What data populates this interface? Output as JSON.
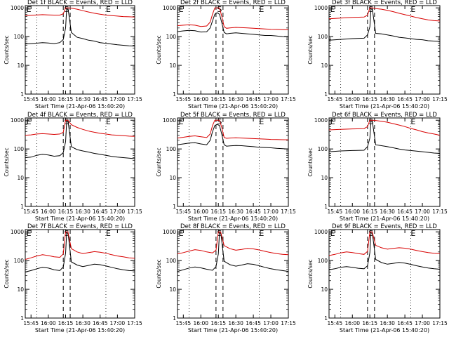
{
  "chart_data": [
    {
      "type": "line",
      "title": "Det 1f BLACK = Events, RED = LLD",
      "series": [
        {
          "name": "Events",
          "color": "#000000",
          "x": [
            0,
            8,
            15,
            20,
            25,
            30,
            33,
            35,
            36,
            37,
            40,
            45,
            50,
            55,
            60,
            65,
            70,
            75,
            80,
            85,
            90,
            95
          ],
          "y": [
            55,
            58,
            62,
            60,
            57,
            62,
            80,
            200,
            1000,
            1000,
            140,
            95,
            85,
            75,
            70,
            62,
            58,
            55,
            52,
            50,
            48,
            47
          ]
        },
        {
          "name": "LLD",
          "color": "#d80000",
          "x": [
            0,
            8,
            15,
            20,
            25,
            30,
            33,
            35,
            36,
            37,
            40,
            45,
            50,
            55,
            60,
            65,
            70,
            75,
            80,
            85,
            90,
            95
          ],
          "y": [
            540,
            560,
            580,
            570,
            560,
            560,
            620,
            1000,
            1000,
            1000,
            980,
            900,
            800,
            720,
            650,
            600,
            560,
            540,
            520,
            500,
            490,
            480
          ]
        }
      ]
    },
    {
      "type": "line",
      "title": "Det 2f BLACK = Events, RED = LLD",
      "series": [
        {
          "name": "Events",
          "color": "#000000",
          "x": [
            0,
            5,
            10,
            15,
            20,
            25,
            28,
            30,
            32,
            34,
            36,
            38,
            40,
            42,
            45,
            50,
            55,
            60,
            65,
            70,
            75,
            80,
            85,
            90,
            95
          ],
          "y": [
            150,
            158,
            165,
            160,
            145,
            148,
            200,
            350,
            600,
            680,
            600,
            300,
            140,
            125,
            130,
            135,
            130,
            125,
            120,
            115,
            110,
            110,
            105,
            100,
            98
          ]
        },
        {
          "name": "LLD",
          "color": "#d80000",
          "x": [
            0,
            5,
            10,
            15,
            20,
            25,
            28,
            30,
            32,
            34,
            36,
            38,
            40,
            42,
            45,
            50,
            55,
            60,
            65,
            70,
            75,
            80,
            85,
            90,
            95
          ],
          "y": [
            240,
            250,
            260,
            250,
            225,
            235,
            320,
            600,
            1000,
            1000,
            1000,
            500,
            220,
            195,
            200,
            210,
            205,
            200,
            195,
            190,
            185,
            180,
            178,
            175,
            172
          ]
        }
      ]
    },
    {
      "type": "line",
      "title": "Det 3f BLACK = Events, RED = LLD",
      "series": [
        {
          "name": "Events",
          "color": "#000000",
          "x": [
            0,
            10,
            20,
            30,
            33,
            35,
            36,
            37,
            40,
            45,
            50,
            55,
            60,
            65,
            70,
            75,
            80,
            85,
            90,
            95
          ],
          "y": [
            75,
            80,
            85,
            88,
            115,
            220,
            1000,
            1000,
            130,
            125,
            115,
            105,
            95,
            90,
            85,
            80,
            78,
            72,
            70,
            68
          ]
        },
        {
          "name": "LLD",
          "color": "#d80000",
          "x": [
            0,
            10,
            20,
            30,
            33,
            35,
            36,
            37,
            40,
            45,
            50,
            55,
            60,
            65,
            70,
            75,
            80,
            85,
            90,
            95
          ],
          "y": [
            420,
            440,
            470,
            480,
            560,
            1000,
            1000,
            1000,
            950,
            900,
            820,
            740,
            650,
            580,
            520,
            460,
            420,
            380,
            360,
            350
          ]
        }
      ]
    },
    {
      "type": "line",
      "title": "Det 4f BLACK = Events, RED = LLD",
      "series": [
        {
          "name": "Events",
          "color": "#000000",
          "x": [
            0,
            5,
            10,
            15,
            20,
            25,
            30,
            33,
            35,
            36,
            37,
            40,
            45,
            50,
            55,
            60,
            65,
            70,
            75,
            80,
            85,
            90,
            95
          ],
          "y": [
            50,
            52,
            60,
            65,
            62,
            56,
            58,
            75,
            180,
            1000,
            1000,
            120,
            95,
            85,
            78,
            70,
            65,
            60,
            55,
            52,
            50,
            48,
            46
          ]
        },
        {
          "name": "LLD",
          "color": "#d80000",
          "x": [
            0,
            5,
            10,
            15,
            20,
            25,
            30,
            33,
            35,
            36,
            37,
            40,
            45,
            50,
            55,
            60,
            65,
            70,
            75,
            80,
            85,
            90,
            95
          ],
          "y": [
            300,
            310,
            330,
            340,
            330,
            320,
            330,
            380,
            1000,
            1000,
            1000,
            700,
            560,
            480,
            420,
            380,
            350,
            330,
            310,
            300,
            290,
            280,
            275
          ]
        }
      ]
    },
    {
      "type": "line",
      "title": "Det 5f BLACK = Events, RED = LLD",
      "series": [
        {
          "name": "Events",
          "color": "#000000",
          "x": [
            0,
            5,
            10,
            15,
            20,
            25,
            28,
            30,
            32,
            34,
            36,
            38,
            40,
            42,
            45,
            50,
            55,
            60,
            65,
            70,
            75,
            80,
            85,
            90,
            95
          ],
          "y": [
            140,
            150,
            160,
            165,
            150,
            140,
            200,
            400,
            650,
            720,
            650,
            320,
            140,
            125,
            128,
            132,
            130,
            125,
            120,
            115,
            112,
            110,
            105,
            102,
            100
          ]
        },
        {
          "name": "LLD",
          "color": "#d80000",
          "x": [
            0,
            5,
            10,
            15,
            20,
            25,
            28,
            30,
            32,
            34,
            36,
            38,
            40,
            42,
            45,
            50,
            55,
            60,
            65,
            70,
            75,
            80,
            85,
            90,
            95
          ],
          "y": [
            240,
            255,
            275,
            285,
            265,
            250,
            330,
            650,
            1000,
            1000,
            1000,
            550,
            250,
            235,
            240,
            245,
            240,
            235,
            230,
            225,
            220,
            215,
            212,
            210,
            208
          ]
        }
      ]
    },
    {
      "type": "line",
      "title": "Det 6f BLACK = Events, RED = LLD",
      "series": [
        {
          "name": "Events",
          "color": "#000000",
          "x": [
            0,
            10,
            20,
            30,
            33,
            35,
            36,
            37,
            40,
            45,
            50,
            55,
            60,
            65,
            70,
            75,
            80,
            85,
            90,
            95
          ],
          "y": [
            80,
            85,
            88,
            90,
            120,
            240,
            1000,
            1000,
            140,
            130,
            120,
            110,
            100,
            92,
            88,
            84,
            80,
            76,
            72,
            70
          ]
        },
        {
          "name": "LLD",
          "color": "#d80000",
          "x": [
            0,
            10,
            20,
            30,
            33,
            35,
            36,
            37,
            40,
            45,
            50,
            55,
            60,
            65,
            70,
            75,
            80,
            85,
            90,
            95
          ],
          "y": [
            460,
            480,
            500,
            510,
            600,
            1000,
            1000,
            1000,
            980,
            920,
            850,
            760,
            680,
            600,
            520,
            460,
            400,
            360,
            330,
            300
          ]
        }
      ]
    },
    {
      "type": "line",
      "title": "Det 7f BLACK = Events, RED = LLD",
      "series": [
        {
          "name": "Events",
          "color": "#000000",
          "x": [
            0,
            5,
            10,
            15,
            20,
            25,
            30,
            33,
            35,
            36,
            37,
            40,
            45,
            50,
            55,
            60,
            65,
            70,
            75,
            80,
            85,
            90,
            95
          ],
          "y": [
            40,
            45,
            52,
            58,
            55,
            48,
            45,
            60,
            180,
            1000,
            1000,
            90,
            70,
            62,
            68,
            75,
            72,
            65,
            58,
            52,
            48,
            45,
            44
          ]
        },
        {
          "name": "LLD",
          "color": "#d80000",
          "x": [
            0,
            5,
            10,
            15,
            20,
            25,
            30,
            33,
            35,
            36,
            37,
            40,
            45,
            50,
            55,
            60,
            65,
            70,
            75,
            80,
            85,
            90,
            95
          ],
          "y": [
            110,
            125,
            145,
            160,
            150,
            135,
            130,
            170,
            1000,
            1000,
            1000,
            260,
            200,
            175,
            190,
            205,
            195,
            180,
            160,
            145,
            135,
            125,
            120
          ]
        }
      ]
    },
    {
      "type": "line",
      "title": "Det 8f BLACK = Events, RED = LLD",
      "series": [
        {
          "name": "Events",
          "color": "#000000",
          "x": [
            0,
            5,
            10,
            15,
            20,
            25,
            30,
            33,
            35,
            36,
            37,
            40,
            45,
            50,
            55,
            60,
            65,
            70,
            75,
            80,
            85,
            90,
            95
          ],
          "y": [
            42,
            48,
            55,
            60,
            56,
            50,
            46,
            62,
            170,
            1000,
            1000,
            95,
            72,
            64,
            70,
            78,
            74,
            66,
            58,
            52,
            48,
            45,
            42
          ]
        },
        {
          "name": "LLD",
          "color": "#d80000",
          "x": [
            0,
            5,
            10,
            15,
            20,
            25,
            30,
            33,
            35,
            36,
            37,
            40,
            45,
            50,
            55,
            60,
            65,
            70,
            75,
            80,
            85,
            90,
            95
          ],
          "y": [
            170,
            190,
            215,
            240,
            225,
            200,
            185,
            230,
            1000,
            1000,
            1000,
            330,
            260,
            230,
            245,
            265,
            255,
            235,
            210,
            190,
            175,
            165,
            160
          ]
        }
      ]
    },
    {
      "type": "line",
      "title": "Det 9f BLACK = Events, RED = LLD",
      "series": [
        {
          "name": "Events",
          "color": "#000000",
          "x": [
            0,
            5,
            10,
            15,
            20,
            25,
            30,
            33,
            35,
            36,
            37,
            40,
            45,
            50,
            55,
            60,
            65,
            70,
            75,
            80,
            85,
            90,
            95
          ],
          "y": [
            48,
            52,
            58,
            62,
            58,
            54,
            52,
            66,
            190,
            1000,
            1000,
            110,
            85,
            75,
            80,
            86,
            82,
            74,
            66,
            60,
            55,
            52,
            50
          ]
        },
        {
          "name": "LLD",
          "color": "#d80000",
          "x": [
            0,
            5,
            10,
            15,
            20,
            25,
            30,
            33,
            35,
            36,
            37,
            40,
            45,
            50,
            55,
            60,
            65,
            70,
            75,
            80,
            85,
            90,
            95
          ],
          "y": [
            150,
            165,
            185,
            200,
            190,
            175,
            165,
            210,
            1000,
            1000,
            1000,
            340,
            280,
            250,
            265,
            280,
            270,
            250,
            225,
            205,
            190,
            180,
            175
          ]
        }
      ]
    }
  ],
  "shared_axes": {
    "xlabel": "Start Time (21-Apr-06 15:40:20)",
    "ylabel": "Counts/sec",
    "xlim": [
      0,
      95
    ],
    "ylim": [
      1,
      1200
    ],
    "yscale": "log",
    "y_ticks": [
      {
        "v": 1,
        "l": "1"
      },
      {
        "v": 10,
        "l": "10"
      },
      {
        "v": 100,
        "l": "100"
      },
      {
        "v": 1000,
        "l": "1000"
      }
    ],
    "x_ticks": [
      {
        "v": 5,
        "l": "15:45"
      },
      {
        "v": 20,
        "l": "16:00"
      },
      {
        "v": 35,
        "l": "16:15"
      },
      {
        "v": 50,
        "l": "16:30"
      },
      {
        "v": 65,
        "l": "16:45"
      },
      {
        "v": 80,
        "l": "17:00"
      },
      {
        "v": 95,
        "l": "17:15"
      }
    ],
    "x_ticks_center": [
      {
        "v": 5,
        "l": "15:45"
      },
      {
        "v": 20,
        "l": "16:00"
      },
      {
        "v": 35,
        "l": "16:15"
      },
      {
        "v": 50,
        "l": "16:30"
      },
      {
        "v": 65,
        "l": "16:45"
      },
      {
        "v": 80,
        "l": "17:00"
      },
      {
        "v": 95,
        "l": "17:15"
      }
    ],
    "dotted_lines": [
      10,
      70
    ],
    "dashed_lines": [
      33,
      39
    ],
    "markers": [
      {
        "v": 1,
        "l": "E"
      },
      {
        "v": 36,
        "l": "S"
      },
      {
        "v": 70,
        "l": "E"
      }
    ],
    "colors": {
      "events": "#000000",
      "lld": "#d80000",
      "axes": "#000000"
    }
  }
}
